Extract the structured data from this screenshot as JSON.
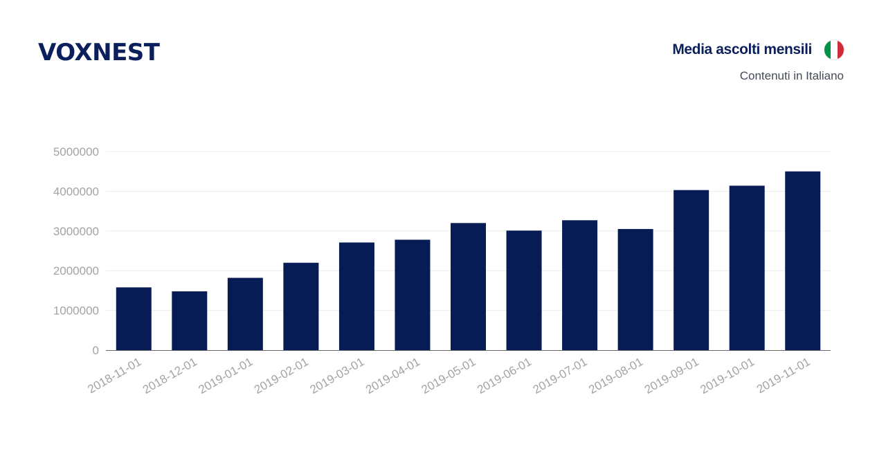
{
  "brand": {
    "logo_text": "VOXNEST"
  },
  "header": {
    "title": "Media ascolti mensili",
    "subtitle": "Contenuti in Italiano",
    "flag_icon": "italy-flag-icon",
    "flag_colors": [
      "#009246",
      "#ffffff",
      "#ce2b37"
    ]
  },
  "colors": {
    "bar": "#071c55",
    "axis_text": "#a3a3a3",
    "grid": "#ececec",
    "axis_line": "#666666"
  },
  "chart_data": {
    "type": "bar",
    "title": "Media ascolti mensili",
    "subtitle": "Contenuti in Italiano",
    "xlabel": "",
    "ylabel": "",
    "categories": [
      "2018-11-01",
      "2018-12-01",
      "2019-01-01",
      "2019-02-01",
      "2019-03-01",
      "2019-04-01",
      "2019-05-01",
      "2019-06-01",
      "2019-07-01",
      "2019-08-01",
      "2019-09-01",
      "2019-10-01",
      "2019-11-01"
    ],
    "values": [
      1580000,
      1480000,
      1820000,
      2200000,
      2710000,
      2780000,
      3200000,
      3010000,
      3270000,
      3050000,
      4030000,
      4140000,
      4500000
    ],
    "ylim": [
      0,
      5000000
    ],
    "yticks": [
      "0",
      "1000000",
      "2000000",
      "3000000",
      "4000000",
      "5000000"
    ],
    "grid": true,
    "legend": "none"
  }
}
